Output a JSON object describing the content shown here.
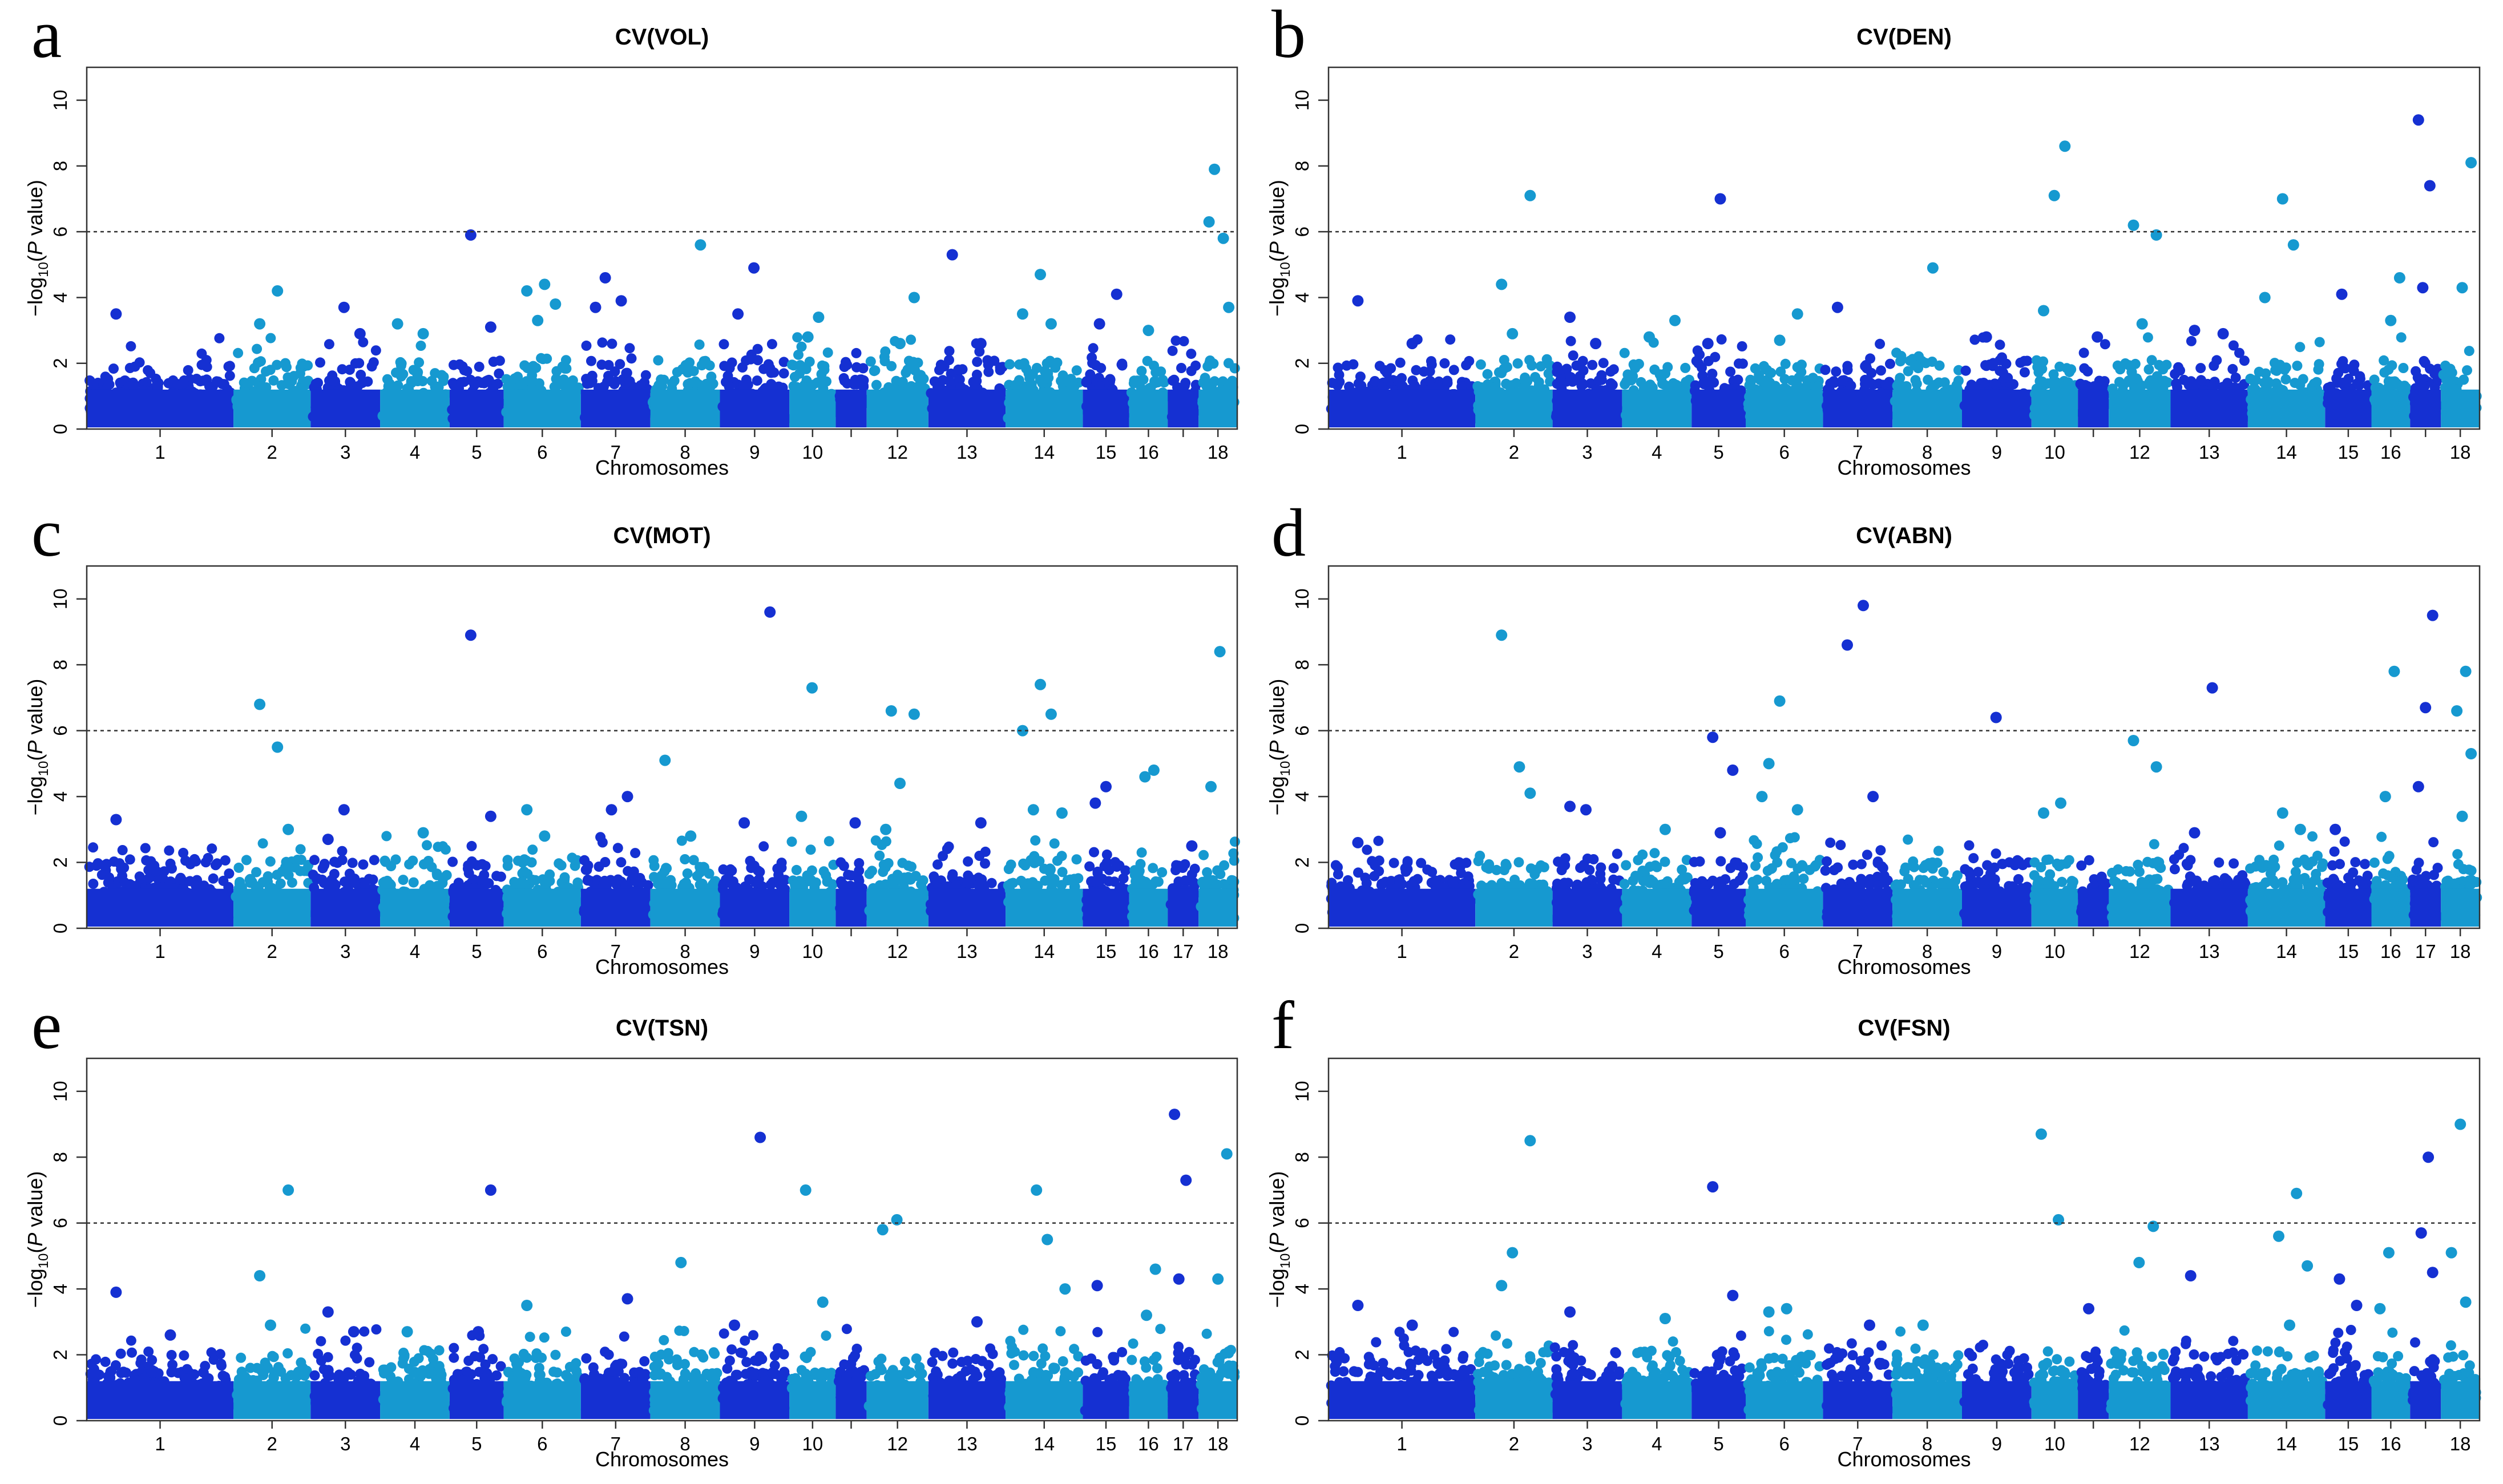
{
  "figure": {
    "axis_x_label": "Chromosomes",
    "axis_y_label_prefix": "−log",
    "axis_y_label_sub": "10",
    "axis_y_label_p": "P",
    "axis_y_label_suffix": " value)",
    "colors": {
      "dark": "#1530d2",
      "light": "#1699d0"
    }
  },
  "chart_data": [
    {
      "type": "scatter",
      "letter": "a",
      "title": "CV(VOL)",
      "xlabel": "Chromosomes",
      "ylabel": "−log10(P value)",
      "ylim": [
        0,
        11
      ],
      "yticks": [
        0,
        2,
        4,
        6,
        8,
        10
      ],
      "threshold": 6,
      "chromosomes": [
        "1",
        "2",
        "3",
        "4",
        "5",
        "6",
        "7",
        "8",
        "9",
        "10",
        "11",
        "12",
        "13",
        "14",
        "15",
        "16",
        "17",
        "18"
      ],
      "tick_labels": [
        "1",
        "2",
        "3",
        "4",
        "5",
        "6",
        "7",
        "8",
        "9",
        "10",
        "",
        "12",
        "13",
        "14",
        "15",
        "16",
        "",
        "18"
      ],
      "peaks": [
        [
          1,
          3.5
        ],
        [
          2,
          4.2
        ],
        [
          2,
          3.2
        ],
        [
          3,
          2.9
        ],
        [
          3,
          3.7
        ],
        [
          4,
          3.2
        ],
        [
          4,
          2.9
        ],
        [
          5,
          5.9
        ],
        [
          5,
          3.1
        ],
        [
          6,
          4.4
        ],
        [
          6,
          4.2
        ],
        [
          6,
          3.8
        ],
        [
          6,
          3.3
        ],
        [
          7,
          3.7
        ],
        [
          7,
          3.9
        ],
        [
          7,
          4.6
        ],
        [
          8,
          5.6
        ],
        [
          9,
          4.9
        ],
        [
          9,
          3.5
        ],
        [
          10,
          3.4
        ],
        [
          10,
          2.8
        ],
        [
          12,
          4.0
        ],
        [
          12,
          2.6
        ],
        [
          13,
          5.3
        ],
        [
          13,
          2.6
        ],
        [
          14,
          4.7
        ],
        [
          14,
          3.5
        ],
        [
          14,
          3.2
        ],
        [
          15,
          3.2
        ],
        [
          15,
          4.1
        ],
        [
          16,
          3.0
        ],
        [
          18,
          6.3
        ],
        [
          18,
          5.8
        ],
        [
          18,
          7.9
        ],
        [
          18,
          3.7
        ]
      ]
    },
    {
      "type": "scatter",
      "letter": "b",
      "title": "CV(DEN)",
      "xlabel": "Chromosomes",
      "ylabel": "−log10(P value)",
      "ylim": [
        0,
        11
      ],
      "yticks": [
        0,
        2,
        4,
        6,
        8,
        10
      ],
      "threshold": 6,
      "chromosomes": [
        "1",
        "2",
        "3",
        "4",
        "5",
        "6",
        "7",
        "8",
        "9",
        "10",
        "11",
        "12",
        "13",
        "14",
        "15",
        "16",
        "17",
        "18"
      ],
      "tick_labels": [
        "1",
        "2",
        "3",
        "4",
        "5",
        "6",
        "7",
        "8",
        "9",
        "10",
        "",
        "12",
        "13",
        "14",
        "15",
        "16",
        "",
        "18"
      ],
      "peaks": [
        [
          1,
          3.9
        ],
        [
          1,
          2.6
        ],
        [
          2,
          4.4
        ],
        [
          2,
          7.1
        ],
        [
          2,
          2.9
        ],
        [
          3,
          3.4
        ],
        [
          3,
          2.6
        ],
        [
          4,
          2.8
        ],
        [
          4,
          3.3
        ],
        [
          5,
          7.0
        ],
        [
          5,
          2.6
        ],
        [
          6,
          3.5
        ],
        [
          6,
          2.7
        ],
        [
          7,
          3.7
        ],
        [
          8,
          4.9
        ],
        [
          9,
          2.8
        ],
        [
          10,
          8.6
        ],
        [
          10,
          7.1
        ],
        [
          10,
          3.6
        ],
        [
          11,
          2.8
        ],
        [
          12,
          6.2
        ],
        [
          12,
          5.9
        ],
        [
          12,
          3.2
        ],
        [
          13,
          3.0
        ],
        [
          13,
          2.9
        ],
        [
          14,
          7.0
        ],
        [
          14,
          4.0
        ],
        [
          14,
          5.6
        ],
        [
          15,
          4.1
        ],
        [
          16,
          4.6
        ],
        [
          16,
          3.3
        ],
        [
          17,
          9.4
        ],
        [
          17,
          7.4
        ],
        [
          17,
          4.3
        ],
        [
          18,
          8.1
        ],
        [
          18,
          4.3
        ]
      ]
    },
    {
      "type": "scatter",
      "letter": "c",
      "title": "CV(MOT)",
      "xlabel": "Chromosomes",
      "ylabel": "−log10(P value)",
      "ylim": [
        0,
        11
      ],
      "yticks": [
        0,
        2,
        4,
        6,
        8,
        10
      ],
      "threshold": 6,
      "chromosomes": [
        "1",
        "2",
        "3",
        "4",
        "5",
        "6",
        "7",
        "8",
        "9",
        "10",
        "11",
        "12",
        "13",
        "14",
        "15",
        "16",
        "17",
        "18"
      ],
      "tick_labels": [
        "1",
        "2",
        "3",
        "4",
        "5",
        "6",
        "7",
        "8",
        "9",
        "10",
        "",
        "12",
        "13",
        "14",
        "15",
        "16",
        "17",
        "18"
      ],
      "peaks": [
        [
          1,
          3.3
        ],
        [
          2,
          5.5
        ],
        [
          2,
          6.8
        ],
        [
          2,
          3.0
        ],
        [
          3,
          3.6
        ],
        [
          3,
          2.7
        ],
        [
          4,
          2.9
        ],
        [
          5,
          8.9
        ],
        [
          5,
          3.4
        ],
        [
          6,
          2.8
        ],
        [
          6,
          3.6
        ],
        [
          7,
          4.0
        ],
        [
          7,
          3.6
        ],
        [
          8,
          5.1
        ],
        [
          8,
          2.8
        ],
        [
          9,
          3.2
        ],
        [
          9,
          9.6
        ],
        [
          10,
          7.3
        ],
        [
          10,
          3.4
        ],
        [
          11,
          3.2
        ],
        [
          12,
          6.6
        ],
        [
          12,
          6.5
        ],
        [
          12,
          4.4
        ],
        [
          12,
          3.0
        ],
        [
          13,
          3.2
        ],
        [
          14,
          7.4
        ],
        [
          14,
          6.0
        ],
        [
          14,
          6.5
        ],
        [
          14,
          3.6
        ],
        [
          14,
          3.5
        ],
        [
          15,
          4.3
        ],
        [
          15,
          3.8
        ],
        [
          16,
          4.8
        ],
        [
          16,
          4.6
        ],
        [
          17,
          2.5
        ],
        [
          18,
          8.4
        ],
        [
          18,
          4.3
        ]
      ]
    },
    {
      "type": "scatter",
      "letter": "d",
      "title": "CV(ABN)",
      "xlabel": "Chromosomes",
      "ylabel": "−log10(P value)",
      "ylim": [
        0,
        11
      ],
      "yticks": [
        0,
        2,
        4,
        6,
        8,
        10
      ],
      "threshold": 6,
      "chromosomes": [
        "1",
        "2",
        "3",
        "4",
        "5",
        "6",
        "7",
        "8",
        "9",
        "10",
        "11",
        "12",
        "13",
        "14",
        "15",
        "16",
        "17",
        "18"
      ],
      "tick_labels": [
        "1",
        "2",
        "3",
        "4",
        "5",
        "6",
        "7",
        "8",
        "9",
        "10",
        "",
        "12",
        "13",
        "14",
        "15",
        "16",
        "17",
        "18"
      ],
      "peaks": [
        [
          1,
          2.6
        ],
        [
          2,
          4.9
        ],
        [
          2,
          8.9
        ],
        [
          2,
          4.1
        ],
        [
          3,
          3.6
        ],
        [
          3,
          3.7
        ],
        [
          4,
          3.0
        ],
        [
          5,
          5.8
        ],
        [
          5,
          4.8
        ],
        [
          5,
          2.9
        ],
        [
          6,
          5.0
        ],
        [
          6,
          3.6
        ],
        [
          6,
          6.9
        ],
        [
          6,
          4.0
        ],
        [
          7,
          9.8
        ],
        [
          7,
          8.6
        ],
        [
          7,
          4.0
        ],
        [
          9,
          6.4
        ],
        [
          10,
          3.5
        ],
        [
          10,
          3.8
        ],
        [
          12,
          5.7
        ],
        [
          12,
          4.9
        ],
        [
          13,
          7.3
        ],
        [
          13,
          2.9
        ],
        [
          14,
          3.0
        ],
        [
          14,
          3.5
        ],
        [
          15,
          3.0
        ],
        [
          16,
          7.8
        ],
        [
          16,
          4.0
        ],
        [
          17,
          9.5
        ],
        [
          17,
          6.7
        ],
        [
          17,
          4.3
        ],
        [
          18,
          7.8
        ],
        [
          18,
          6.6
        ],
        [
          18,
          5.3
        ],
        [
          18,
          3.4
        ]
      ]
    },
    {
      "type": "scatter",
      "letter": "e",
      "title": "CV(TSN)",
      "xlabel": "Chromosomes",
      "ylabel": "−log10(P value)",
      "ylim": [
        0,
        11
      ],
      "yticks": [
        0,
        2,
        4,
        6,
        8,
        10
      ],
      "threshold": 6,
      "chromosomes": [
        "1",
        "2",
        "3",
        "4",
        "5",
        "6",
        "7",
        "8",
        "9",
        "10",
        "11",
        "12",
        "13",
        "14",
        "15",
        "16",
        "17",
        "18"
      ],
      "tick_labels": [
        "1",
        "2",
        "3",
        "4",
        "5",
        "6",
        "7",
        "8",
        "9",
        "10",
        "",
        "12",
        "13",
        "14",
        "15",
        "16",
        "17",
        "18"
      ],
      "peaks": [
        [
          1,
          3.9
        ],
        [
          1,
          2.6
        ],
        [
          2,
          4.4
        ],
        [
          2,
          7.0
        ],
        [
          2,
          2.9
        ],
        [
          3,
          3.3
        ],
        [
          3,
          2.7
        ],
        [
          4,
          2.7
        ],
        [
          5,
          7.0
        ],
        [
          5,
          2.7
        ],
        [
          6,
          3.5
        ],
        [
          7,
          3.7
        ],
        [
          8,
          4.8
        ],
        [
          9,
          2.9
        ],
        [
          9,
          8.6
        ],
        [
          10,
          7.0
        ],
        [
          10,
          3.6
        ],
        [
          12,
          6.1
        ],
        [
          12,
          5.8
        ],
        [
          13,
          3.0
        ],
        [
          14,
          7.0
        ],
        [
          14,
          4.0
        ],
        [
          14,
          5.5
        ],
        [
          15,
          4.1
        ],
        [
          16,
          4.6
        ],
        [
          16,
          3.2
        ],
        [
          17,
          9.3
        ],
        [
          17,
          7.3
        ],
        [
          17,
          4.3
        ],
        [
          18,
          8.1
        ],
        [
          18,
          4.3
        ]
      ]
    },
    {
      "type": "scatter",
      "letter": "f",
      "title": "CV(FSN)",
      "xlabel": "Chromosomes",
      "ylabel": "−log10(P value)",
      "ylim": [
        0,
        11
      ],
      "yticks": [
        0,
        2,
        4,
        6,
        8,
        10
      ],
      "threshold": 6,
      "chromosomes": [
        "1",
        "2",
        "3",
        "4",
        "5",
        "6",
        "7",
        "8",
        "9",
        "10",
        "11",
        "12",
        "13",
        "14",
        "15",
        "16",
        "17",
        "18"
      ],
      "tick_labels": [
        "1",
        "2",
        "3",
        "4",
        "5",
        "6",
        "7",
        "8",
        "9",
        "10",
        "",
        "12",
        "13",
        "14",
        "15",
        "16",
        "",
        "18"
      ],
      "peaks": [
        [
          1,
          3.5
        ],
        [
          1,
          2.9
        ],
        [
          2,
          4.1
        ],
        [
          2,
          8.5
        ],
        [
          2,
          5.1
        ],
        [
          3,
          3.3
        ],
        [
          4,
          3.1
        ],
        [
          5,
          7.1
        ],
        [
          5,
          3.8
        ],
        [
          6,
          3.4
        ],
        [
          6,
          3.3
        ],
        [
          7,
          2.9
        ],
        [
          8,
          2.9
        ],
        [
          10,
          8.7
        ],
        [
          10,
          6.1
        ],
        [
          11,
          3.4
        ],
        [
          12,
          5.9
        ],
        [
          12,
          4.8
        ],
        [
          13,
          4.4
        ],
        [
          14,
          6.9
        ],
        [
          14,
          5.6
        ],
        [
          14,
          4.7
        ],
        [
          14,
          2.9
        ],
        [
          15,
          4.3
        ],
        [
          15,
          3.5
        ],
        [
          16,
          5.1
        ],
        [
          16,
          3.4
        ],
        [
          17,
          8.0
        ],
        [
          17,
          5.7
        ],
        [
          17,
          4.5
        ],
        [
          18,
          9.0
        ],
        [
          18,
          5.1
        ],
        [
          18,
          3.6
        ]
      ]
    }
  ]
}
